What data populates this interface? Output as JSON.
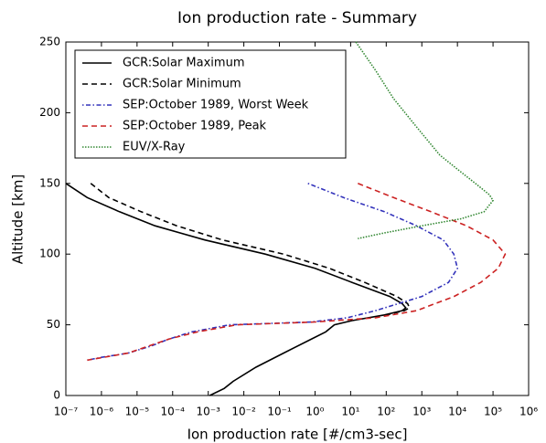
{
  "chart_data": {
    "type": "line",
    "title": "Ion production rate - Summary",
    "xlabel": "Ion production rate [#/cm3-sec]",
    "ylabel": "Altitude [km]",
    "xscale": "log",
    "xlim": [
      1e-07,
      1000000.0
    ],
    "ylim": [
      0,
      250
    ],
    "xticks": [
      {
        "value": 1e-07,
        "label": "10⁻⁷"
      },
      {
        "value": 1e-06,
        "label": "10⁻⁶"
      },
      {
        "value": 1e-05,
        "label": "10⁻⁵"
      },
      {
        "value": 0.0001,
        "label": "10⁻⁴"
      },
      {
        "value": 0.001,
        "label": "10⁻³"
      },
      {
        "value": 0.01,
        "label": "10⁻²"
      },
      {
        "value": 0.1,
        "label": "10⁻¹"
      },
      {
        "value": 1,
        "label": "10⁰"
      },
      {
        "value": 10,
        "label": "10¹"
      },
      {
        "value": 100,
        "label": "10²"
      },
      {
        "value": 1000,
        "label": "10³"
      },
      {
        "value": 10000,
        "label": "10⁴"
      },
      {
        "value": 100000,
        "label": "10⁵"
      },
      {
        "value": 1000000,
        "label": "10⁶"
      }
    ],
    "yticks": [
      0,
      50,
      100,
      150,
      200,
      250
    ],
    "legend": "upper left",
    "series": [
      {
        "name": "GCR:Solar Maximum",
        "color": "#000000",
        "style": "solid",
        "x": [
          1e-07,
          4e-07,
          3.2e-06,
          3.2e-05,
          0.0008,
          0.04,
          1,
          11,
          126,
          280,
          355,
          280,
          89,
          11,
          3.5,
          2,
          0.8,
          0.13,
          0.022,
          0.005,
          0.0028,
          0.0011
        ],
        "values": [
          150,
          140,
          130,
          120,
          110,
          100,
          90,
          80,
          70,
          65,
          62,
          60,
          57,
          53,
          50,
          45,
          40,
          30,
          20,
          10,
          5,
          0
        ]
      },
      {
        "name": "GCR:Solar Minimum",
        "color": "#000000",
        "style": "dashed",
        "x": [
          5e-07,
          1.6e-06,
          1.3e-05,
          0.00013,
          0.0025,
          0.13,
          2.5,
          25,
          200,
          400,
          450,
          320,
          100
        ],
        "values": [
          150,
          140,
          130,
          120,
          110,
          100,
          90,
          80,
          70,
          65,
          62,
          60,
          57
        ]
      },
      {
        "name": "SEP:October 1989, Worst Week",
        "color": "#3333bb",
        "style": "dashdot",
        "x": [
          0.63,
          6.3,
          89,
          710,
          4000,
          7900,
          10000,
          5600,
          1000,
          50,
          8,
          0.8,
          0.004,
          0.00035,
          8e-05,
          2.5e-05,
          5.6e-06,
          1e-06,
          4e-07
        ],
        "values": [
          150,
          140,
          130,
          120,
          110,
          100,
          90,
          80,
          70,
          60,
          55,
          52,
          50,
          45,
          40,
          35,
          30,
          27,
          25
        ]
      },
      {
        "name": "SEP:October 1989, Peak",
        "color": "#cc2222",
        "style": "dashed",
        "x": [
          16,
          160,
          1800,
          18000,
          100000,
          220000,
          140000,
          45000,
          8000,
          710,
          50,
          1,
          0.0063,
          0.0005,
          8e-05,
          5.6e-06,
          4e-07
        ],
        "values": [
          150,
          140,
          130,
          120,
          110,
          100,
          90,
          80,
          70,
          60,
          55,
          52,
          50,
          45,
          40,
          30,
          25
        ]
      },
      {
        "name": "EUV/X-Ray",
        "color": "#338833",
        "style": "dotted",
        "x": [
          14,
          50,
          160,
          710,
          3200,
          10000,
          32000,
          79000,
          100000,
          56000,
          12600,
          1000,
          89,
          16
        ],
        "values": [
          250,
          230,
          210,
          190,
          170,
          160,
          150,
          142,
          138,
          130,
          125,
          120,
          115,
          111
        ]
      }
    ]
  }
}
